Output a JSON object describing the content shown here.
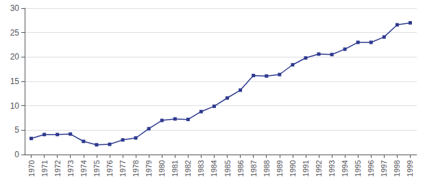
{
  "chart_data": {
    "type": "line",
    "x": [
      1970,
      1971,
      1972,
      1973,
      1974,
      1975,
      1976,
      1977,
      1978,
      1979,
      1980,
      1981,
      1982,
      1983,
      1984,
      1985,
      1986,
      1987,
      1988,
      1989,
      1990,
      1991,
      1992,
      1993,
      1994,
      1995,
      1996,
      1997,
      1998,
      1999
    ],
    "values": [
      3.3,
      4.1,
      4.1,
      4.2,
      2.7,
      2.0,
      2.1,
      3.0,
      3.4,
      5.3,
      7.0,
      7.3,
      7.2,
      8.8,
      9.9,
      11.6,
      13.2,
      16.2,
      16.1,
      16.4,
      18.4,
      19.8,
      20.6,
      20.5,
      21.6,
      23.0,
      23.0,
      24.1,
      26.6,
      27.0
    ],
    "color": "#2e3a8f",
    "marker": "square",
    "xlim": [
      1969.5,
      1999.5
    ],
    "xticks": [
      1970,
      1971,
      1972,
      1973,
      1974,
      1975,
      1976,
      1977,
      1978,
      1979,
      1980,
      1981,
      1982,
      1983,
      1984,
      1985,
      1986,
      1987,
      1988,
      1989,
      1990,
      1991,
      1992,
      1993,
      1994,
      1995,
      1996,
      1997,
      1998,
      1999
    ],
    "ylim": [
      0,
      30
    ],
    "yticks": [
      0,
      5,
      10,
      15,
      20,
      25,
      30
    ],
    "grid": true
  }
}
